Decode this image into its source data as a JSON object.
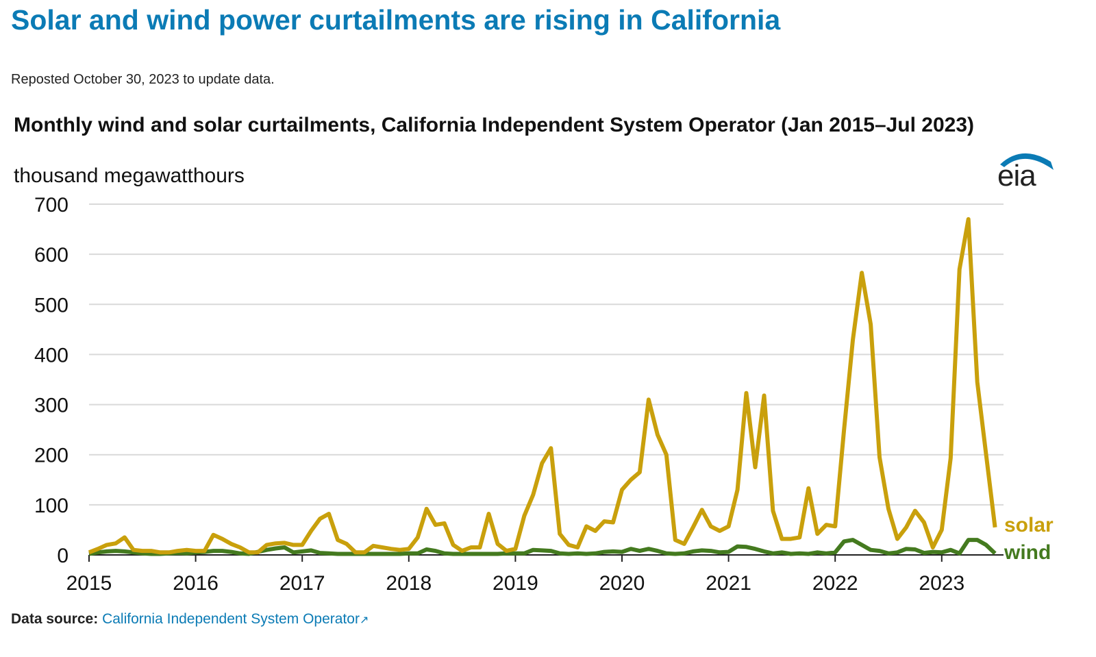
{
  "headline": "Solar and wind power curtailments are rising in California",
  "note": "Reposted October 30, 2023 to update data.",
  "logo": "eia",
  "source": {
    "label": "Data source:",
    "link": "California Independent System Operator",
    "link_icon": "external-link-icon"
  },
  "colors": {
    "solar": "#c9a00c",
    "wind": "#447a1f",
    "grid": "#d9d9d9"
  },
  "chart_data": {
    "type": "line",
    "title": "Monthly wind and solar curtailments, California Independent System Operator (Jan 2015–Jul 2023)",
    "ylabel": "thousand megawatthours",
    "xlabel": "",
    "ylim": [
      0,
      700
    ],
    "yticks": [
      "0",
      "100",
      "200",
      "300",
      "400",
      "500",
      "600",
      "700"
    ],
    "xticks": [
      "2015",
      "2016",
      "2017",
      "2018",
      "2019",
      "2020",
      "2021",
      "2022",
      "2023"
    ],
    "x_start": "Jan 2015",
    "x_end": "Jul 2023",
    "grid": true,
    "legend": "inline-right",
    "series": [
      {
        "name": "solar",
        "values": [
          5,
          12,
          20,
          23,
          35,
          10,
          8,
          8,
          5,
          5,
          8,
          10,
          8,
          8,
          40,
          32,
          22,
          15,
          5,
          5,
          20,
          23,
          24,
          20,
          20,
          48,
          72,
          82,
          30,
          22,
          5,
          5,
          18,
          15,
          12,
          10,
          12,
          35,
          92,
          60,
          63,
          20,
          8,
          15,
          15,
          82,
          22,
          8,
          12,
          78,
          120,
          183,
          213,
          42,
          20,
          15,
          57,
          48,
          67,
          65,
          130,
          150,
          165,
          310,
          240,
          200,
          30,
          22,
          55,
          90,
          57,
          48,
          57,
          130,
          323,
          175,
          318,
          88,
          32,
          32,
          35,
          133,
          42,
          60,
          57,
          250,
          430,
          563,
          460,
          195,
          92,
          32,
          55,
          88,
          65,
          15,
          50,
          193,
          570,
          670,
          345,
          200,
          55
        ]
      },
      {
        "name": "wind",
        "values": [
          2,
          5,
          7,
          8,
          7,
          5,
          3,
          2,
          2,
          3,
          4,
          3,
          5,
          6,
          8,
          8,
          6,
          3,
          2,
          6,
          10,
          13,
          15,
          5,
          7,
          9,
          4,
          3,
          2,
          2,
          2,
          2,
          2,
          2,
          2,
          2,
          3,
          3,
          11,
          8,
          3,
          2,
          2,
          2,
          2,
          2,
          2,
          3,
          3,
          3,
          10,
          9,
          8,
          3,
          2,
          3,
          2,
          3,
          6,
          7,
          6,
          12,
          8,
          12,
          8,
          3,
          2,
          3,
          7,
          9,
          8,
          5,
          6,
          17,
          16,
          12,
          7,
          3,
          5,
          2,
          3,
          2,
          5,
          3,
          5,
          27,
          30,
          20,
          10,
          8,
          3,
          5,
          12,
          11,
          4,
          6,
          5,
          10,
          3,
          30,
          30,
          20,
          3
        ]
      }
    ]
  }
}
